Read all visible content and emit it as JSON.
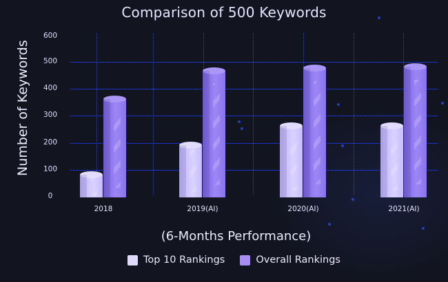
{
  "chart_data": {
    "type": "bar",
    "title": "Comparison of 500 Keywords",
    "xlabel": "(6-Months Performance)",
    "ylabel": "Number of Keywords",
    "categories": [
      "2018",
      "2019(AI)",
      "2020(AI)",
      "2021(AI)"
    ],
    "series": [
      {
        "name": "Top 10 Rankings",
        "color": "#d4ccff",
        "values": [
          85,
          195,
          265,
          265
        ]
      },
      {
        "name": "Overall Rankings",
        "color": "#8f78f0",
        "values": [
          365,
          470,
          480,
          485
        ]
      }
    ],
    "ylim": [
      0,
      600
    ],
    "yticks": [
      "600",
      "500",
      "400",
      "300",
      "200",
      "100",
      "0"
    ],
    "grid": true,
    "legend_position": "bottom"
  },
  "legend": {
    "items": [
      {
        "label": "Top 10 Rankings",
        "color": "#e0daff"
      },
      {
        "label": "Overall Rankings",
        "color": "#a78ef0"
      }
    ]
  }
}
